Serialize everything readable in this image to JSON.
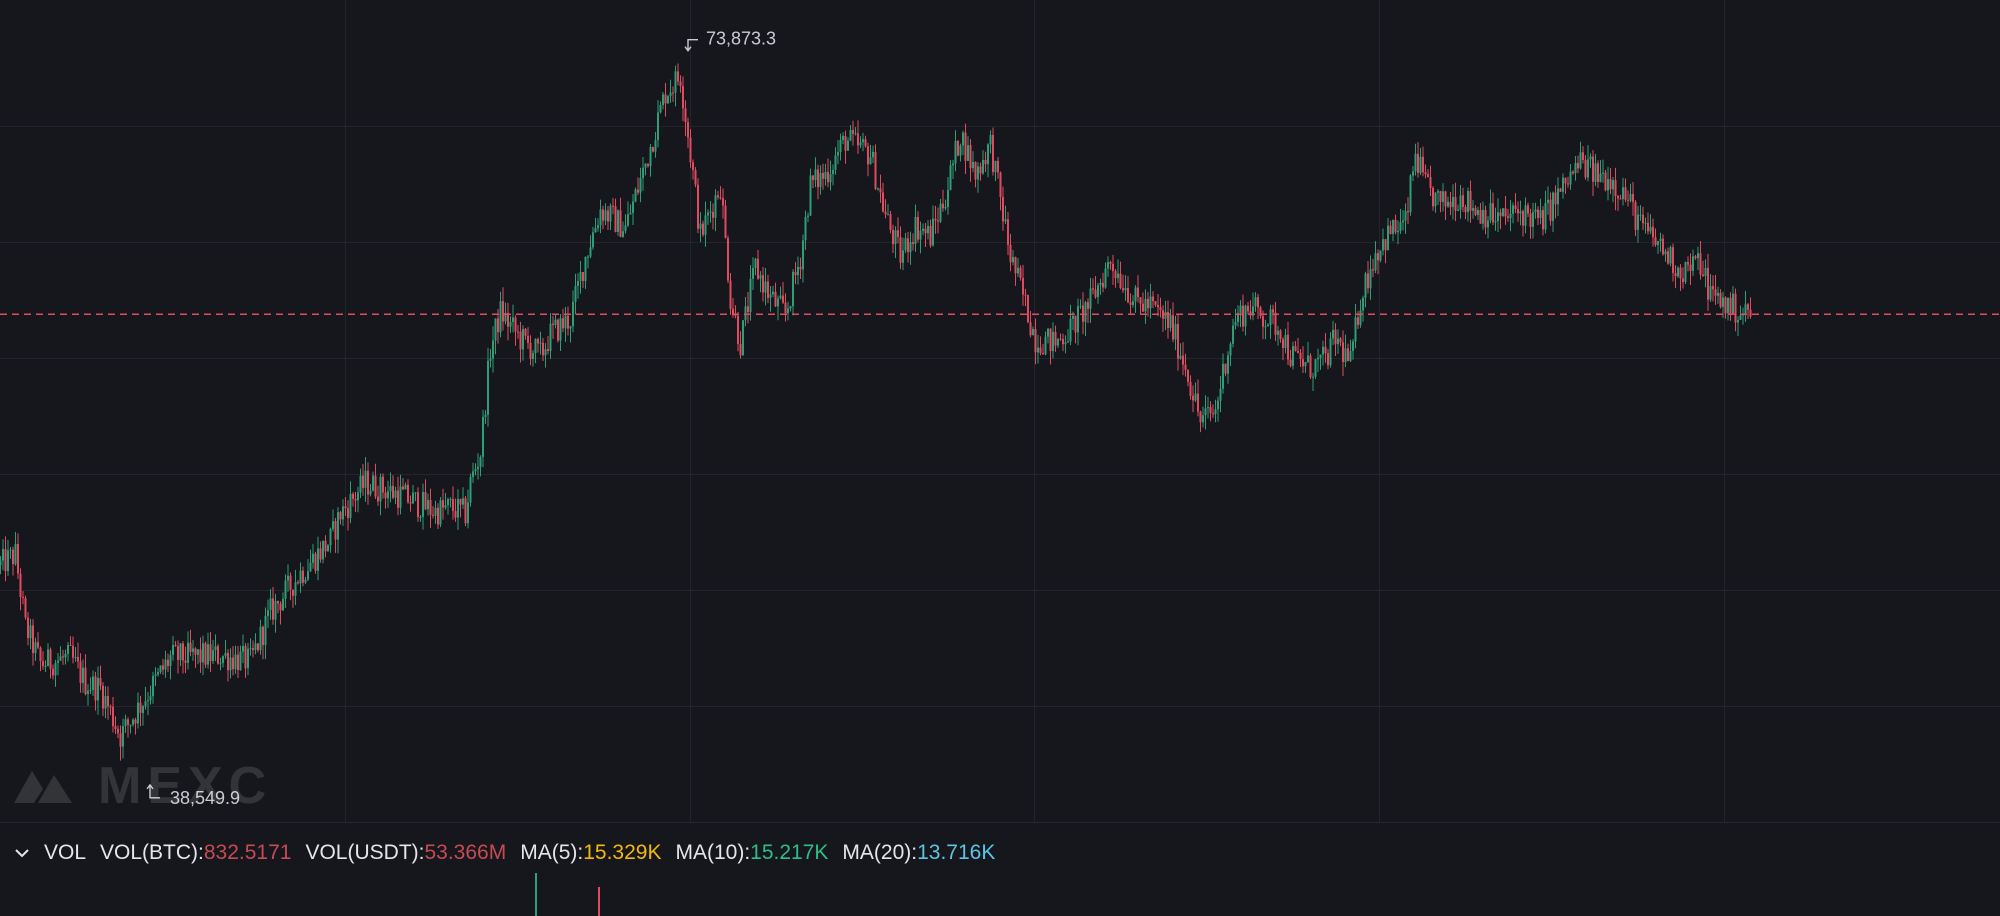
{
  "chart_data": {
    "type": "candlestick",
    "ylim": [
      36500,
      76000
    ],
    "current_price_line": 61200,
    "high_marker": {
      "label": "73,873.3",
      "value": 73873.3
    },
    "low_marker": {
      "label": "38,549.9",
      "value": 38549.9
    },
    "colors": {
      "up": "#2e9e77",
      "down": "#e14b5f",
      "grid": "#22252b",
      "price_line": "#e14b5f"
    },
    "waypoints": [
      [
        0,
        49000
      ],
      [
        1.5,
        49500
      ],
      [
        2.5,
        46000
      ],
      [
        4,
        44200
      ],
      [
        7,
        44500
      ],
      [
        8.5,
        43300
      ],
      [
        10,
        43000
      ],
      [
        12,
        40700
      ],
      [
        14,
        42200
      ],
      [
        17,
        44500
      ],
      [
        22,
        44600
      ],
      [
        25,
        44300
      ],
      [
        27,
        46700
      ],
      [
        30,
        48600
      ],
      [
        33,
        50200
      ],
      [
        34,
        51500
      ],
      [
        36.5,
        53000
      ],
      [
        40,
        52400
      ],
      [
        43.5,
        51600
      ],
      [
        45,
        51800
      ],
      [
        46.5,
        51500
      ],
      [
        47,
        53000
      ],
      [
        48,
        54500
      ],
      [
        49,
        59500
      ],
      [
        50,
        61300
      ],
      [
        52,
        60000
      ],
      [
        54,
        59200
      ],
      [
        55,
        60200
      ],
      [
        57,
        61000
      ],
      [
        58.5,
        64000
      ],
      [
        60,
        66300
      ],
      [
        62.5,
        65400
      ],
      [
        64.5,
        68500
      ],
      [
        66.5,
        72000
      ],
      [
        68,
        72800
      ],
      [
        69,
        69000
      ],
      [
        70,
        65000
      ],
      [
        72,
        67500
      ],
      [
        73,
        62000
      ],
      [
        74,
        59800
      ],
      [
        75.5,
        63500
      ],
      [
        77,
        62000
      ],
      [
        78.5,
        61200
      ],
      [
        80,
        64000
      ],
      [
        81,
        67500
      ],
      [
        82.5,
        68000
      ],
      [
        84.5,
        69700
      ],
      [
        87,
        69000
      ],
      [
        88.5,
        66000
      ],
      [
        90,
        64000
      ],
      [
        91.5,
        65500
      ],
      [
        93,
        65000
      ],
      [
        94.5,
        67000
      ],
      [
        96,
        70000
      ],
      [
        97.5,
        68000
      ],
      [
        99,
        69500
      ],
      [
        101,
        64000
      ],
      [
        102,
        62500
      ],
      [
        103.5,
        60000
      ],
      [
        105.5,
        59800
      ],
      [
        107,
        60500
      ],
      [
        109,
        61800
      ],
      [
        111,
        63800
      ],
      [
        112,
        63000
      ],
      [
        113.5,
        61800
      ],
      [
        115,
        61600
      ],
      [
        117,
        60700
      ],
      [
        118.5,
        58700
      ],
      [
        120,
        56000
      ],
      [
        121.5,
        56500
      ],
      [
        122.5,
        59000
      ],
      [
        123.5,
        61000
      ],
      [
        125,
        61600
      ],
      [
        126,
        61200
      ],
      [
        128,
        60500
      ],
      [
        129,
        59200
      ],
      [
        131,
        58600
      ],
      [
        132.5,
        59000
      ],
      [
        133.5,
        60000
      ],
      [
        135,
        58800
      ],
      [
        136,
        62000
      ],
      [
        137.5,
        64200
      ],
      [
        139,
        65200
      ],
      [
        140.5,
        65600
      ],
      [
        141.5,
        69000
      ],
      [
        142.5,
        67400
      ],
      [
        144,
        66500
      ],
      [
        146,
        67000
      ],
      [
        147.5,
        66300
      ],
      [
        150,
        65800
      ],
      [
        152,
        66200
      ],
      [
        154,
        65700
      ],
      [
        156.5,
        67500
      ],
      [
        158,
        68600
      ],
      [
        159.5,
        68000
      ],
      [
        161,
        67800
      ],
      [
        162.5,
        67000
      ],
      [
        164,
        65500
      ],
      [
        166,
        64500
      ],
      [
        168,
        63300
      ],
      [
        170,
        63700
      ],
      [
        171,
        62200
      ],
      [
        172.5,
        61700
      ],
      [
        174,
        61300
      ],
      [
        175.5,
        61200
      ]
    ]
  },
  "vol_legend": {
    "chevron": "chevron-down-icon",
    "vol_label": "VOL",
    "btc_label": "VOL(BTC):",
    "btc_value": "832.5171",
    "usdt_label": "VOL(USDT):",
    "usdt_value": "53.366M",
    "ma5_label": "MA(5):",
    "ma5_value": "15.329K",
    "ma10_label": "MA(10):",
    "ma10_value": "15.217K",
    "ma20_label": "MA(20):",
    "ma20_value": "13.716K",
    "colors": {
      "btc": "#c84a54",
      "usdt": "#c84a54",
      "ma5": "#f0b90b",
      "ma10": "#2ebd85",
      "ma20": "#5dc4e6"
    }
  },
  "watermark": {
    "text": "MEXC",
    "icon": "mexc-logo-icon"
  }
}
